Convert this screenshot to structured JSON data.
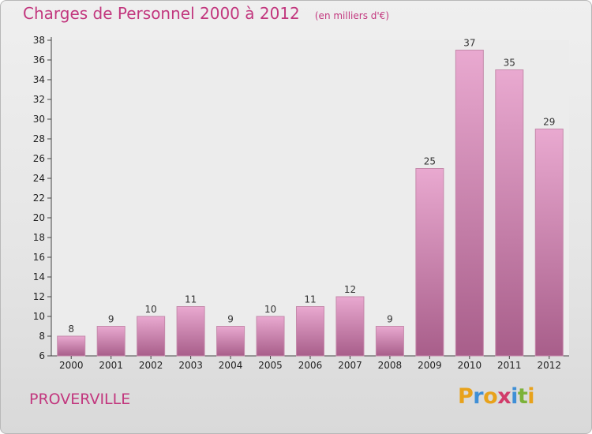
{
  "header": {
    "title": "Charges de Personnel 2000 à 2012",
    "subtitle": "(en milliers d'€)"
  },
  "footer": {
    "city": "PROVERVILLE",
    "logo_letters": [
      "P",
      "r",
      "o",
      "x",
      "i",
      "t",
      "i"
    ],
    "logo_colors": [
      "#e8a21b",
      "#3f8fd6",
      "#e8a21b",
      "#d13b6a",
      "#3f8fd6",
      "#7cb23a",
      "#e8a21b"
    ]
  },
  "colors": {
    "title": "#c2377e",
    "bar_top": "#e9a9d0",
    "bar_bottom": "#a85e8a",
    "bar_border": "#c58aab"
  },
  "chart_data": {
    "type": "bar",
    "title": "Charges de Personnel 2000 à 2012",
    "subtitle": "(en milliers d'€)",
    "categories": [
      "2000",
      "2001",
      "2002",
      "2003",
      "2004",
      "2005",
      "2006",
      "2007",
      "2008",
      "2009",
      "2010",
      "2011",
      "2012"
    ],
    "values": [
      8,
      9,
      10,
      11,
      9,
      10,
      11,
      12,
      9,
      25,
      37,
      35,
      29
    ],
    "ylim": [
      6,
      38
    ],
    "yticks": [
      6,
      8,
      10,
      12,
      14,
      16,
      18,
      20,
      22,
      24,
      26,
      28,
      30,
      32,
      34,
      36,
      38
    ],
    "grid": false,
    "legend": "none"
  }
}
